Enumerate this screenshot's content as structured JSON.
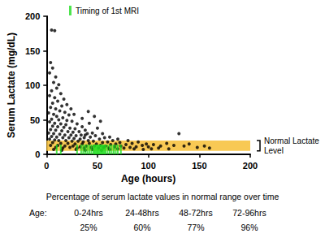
{
  "chart_data": {
    "type": "scatter",
    "xlabel": "Age (hours)",
    "ylabel": "Serum Lactate (mg/dL)",
    "xlim": [
      0,
      200
    ],
    "xticks": [
      0,
      50,
      100,
      150,
      200
    ],
    "ylim": [
      0,
      200
    ],
    "yticks": [
      0,
      50,
      100,
      150,
      200
    ],
    "grid": false,
    "color": "#000000",
    "marker": "circle",
    "points": [
      [
        5,
        180
      ],
      [
        8,
        179
      ],
      [
        4,
        133
      ],
      [
        6,
        125
      ],
      [
        3,
        118
      ],
      [
        9,
        112
      ],
      [
        7,
        104
      ],
      [
        12,
        101
      ],
      [
        10,
        96
      ],
      [
        5,
        92
      ],
      [
        14,
        88
      ],
      [
        3,
        85
      ],
      [
        8,
        82
      ],
      [
        17,
        80
      ],
      [
        11,
        77
      ],
      [
        6,
        74
      ],
      [
        20,
        72
      ],
      [
        15,
        70
      ],
      [
        4,
        68
      ],
      [
        9,
        66
      ],
      [
        24,
        66
      ],
      [
        13,
        63
      ],
      [
        18,
        61
      ],
      [
        2,
        60
      ],
      [
        7,
        58
      ],
      [
        22,
        57
      ],
      [
        27,
        58
      ],
      [
        10,
        55
      ],
      [
        16,
        53
      ],
      [
        5,
        51
      ],
      [
        12,
        50
      ],
      [
        20,
        49
      ],
      [
        25,
        48
      ],
      [
        3,
        47
      ],
      [
        8,
        45
      ],
      [
        14,
        44
      ],
      [
        19,
        43
      ],
      [
        30,
        44
      ],
      [
        6,
        41
      ],
      [
        11,
        40
      ],
      [
        17,
        39
      ],
      [
        23,
        38
      ],
      [
        28,
        37
      ],
      [
        35,
        40
      ],
      [
        4,
        36
      ],
      [
        9,
        35
      ],
      [
        15,
        34
      ],
      [
        21,
        33
      ],
      [
        26,
        32
      ],
      [
        32,
        33
      ],
      [
        38,
        35
      ],
      [
        2,
        31
      ],
      [
        7,
        30
      ],
      [
        13,
        29
      ],
      [
        18,
        28
      ],
      [
        24,
        28
      ],
      [
        29,
        27
      ],
      [
        34,
        28
      ],
      [
        40,
        30
      ],
      [
        45,
        31
      ],
      [
        5,
        26
      ],
      [
        10,
        25
      ],
      [
        16,
        24
      ],
      [
        22,
        24
      ],
      [
        27,
        23
      ],
      [
        33,
        22
      ],
      [
        37,
        24
      ],
      [
        43,
        25
      ],
      [
        48,
        27
      ],
      [
        3,
        22
      ],
      [
        8,
        21
      ],
      [
        12,
        20
      ],
      [
        19,
        20
      ],
      [
        25,
        19
      ],
      [
        31,
        19
      ],
      [
        36,
        18
      ],
      [
        41,
        20
      ],
      [
        46,
        19
      ],
      [
        52,
        22
      ],
      [
        57,
        24
      ],
      [
        6,
        17
      ],
      [
        14,
        16
      ],
      [
        21,
        16
      ],
      [
        28,
        15
      ],
      [
        35,
        15
      ],
      [
        42,
        16
      ],
      [
        49,
        15
      ],
      [
        55,
        17
      ],
      [
        60,
        18
      ],
      [
        65,
        20
      ],
      [
        4,
        13
      ],
      [
        11,
        13
      ],
      [
        18,
        12
      ],
      [
        26,
        12
      ],
      [
        33,
        11
      ],
      [
        39,
        12
      ],
      [
        47,
        12
      ],
      [
        53,
        13
      ],
      [
        58,
        12
      ],
      [
        63,
        14
      ],
      [
        68,
        15
      ],
      [
        72,
        17
      ],
      [
        9,
        10
      ],
      [
        16,
        9
      ],
      [
        23,
        10
      ],
      [
        30,
        9
      ],
      [
        37,
        9
      ],
      [
        44,
        10
      ],
      [
        51,
        9
      ],
      [
        56,
        10
      ],
      [
        61,
        9
      ],
      [
        67,
        11
      ],
      [
        73,
        12
      ],
      [
        78,
        14
      ],
      [
        84,
        16
      ],
      [
        7,
        7
      ],
      [
        15,
        6
      ],
      [
        29,
        7
      ],
      [
        38,
        6
      ],
      [
        45,
        7
      ],
      [
        54,
        6
      ],
      [
        62,
        7
      ],
      [
        70,
        8
      ],
      [
        76,
        9
      ],
      [
        82,
        10
      ],
      [
        88,
        11
      ],
      [
        94,
        13
      ],
      [
        35,
        52
      ],
      [
        42,
        45
      ],
      [
        50,
        38
      ],
      [
        38,
        28
      ],
      [
        55,
        30
      ],
      [
        62,
        25
      ],
      [
        70,
        22
      ],
      [
        80,
        20
      ],
      [
        90,
        18
      ],
      [
        98,
        15
      ],
      [
        105,
        14
      ],
      [
        112,
        12
      ],
      [
        118,
        16
      ],
      [
        125,
        13
      ],
      [
        130,
        30
      ],
      [
        135,
        12
      ],
      [
        140,
        15
      ],
      [
        148,
        10
      ],
      [
        155,
        12
      ],
      [
        160,
        9
      ],
      [
        103,
        8
      ],
      [
        110,
        9
      ],
      [
        120,
        8
      ],
      [
        95,
        7
      ],
      [
        86,
        8
      ],
      [
        100,
        11
      ],
      [
        41,
        62
      ],
      [
        47,
        55
      ],
      [
        53,
        48
      ]
    ],
    "mri": {
      "name": "Timing of 1st MRI",
      "color": "#22dd22",
      "x": [
        10,
        14,
        30,
        34,
        36,
        38,
        40,
        42,
        44,
        46,
        47,
        48,
        49,
        50,
        51,
        52,
        53,
        54,
        55,
        56,
        57,
        58,
        60,
        62,
        64,
        66,
        68,
        70,
        73
      ]
    },
    "normal_band": {
      "label": "Normal Lactate Level",
      "range": [
        5,
        20
      ],
      "color": "#f7c341"
    },
    "table": {
      "title": "Percentage of serum lactate values in normal range over time",
      "header": "Age:",
      "columns": [
        "0-24hrs",
        "24-48hrs",
        "48-72hrs",
        "72-96hrs"
      ],
      "values": [
        "25%",
        "60%",
        "77%",
        "96%"
      ]
    }
  }
}
